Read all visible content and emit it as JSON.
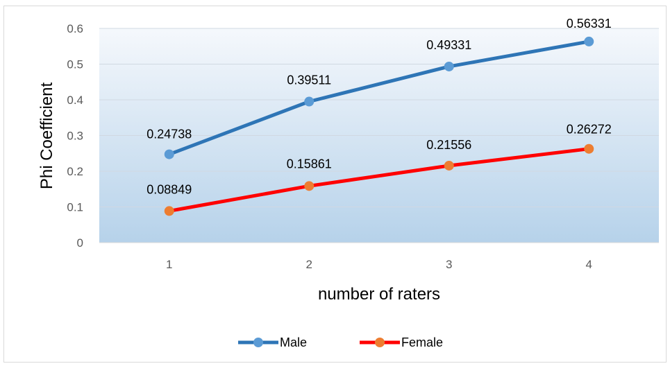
{
  "chart_data": {
    "type": "line",
    "title": "",
    "xlabel": "number of raters",
    "ylabel": "Phi Coefficient",
    "categories": [
      "1",
      "2",
      "3",
      "4"
    ],
    "ylim": [
      0,
      0.6
    ],
    "yticks": [
      "0",
      "0.1",
      "0.2",
      "0.3",
      "0.4",
      "0.5",
      "0.6"
    ],
    "grid": true,
    "legend_position": "bottom",
    "series": [
      {
        "name": "Male",
        "values": [
          0.24738,
          0.39511,
          0.49331,
          0.56331
        ],
        "labels": [
          "0.24738",
          "0.39511",
          "0.49331",
          "0.56331"
        ],
        "line_color": "#2e75b6",
        "marker_color": "#5b9bd5"
      },
      {
        "name": "Female",
        "values": [
          0.08849,
          0.15861,
          0.21556,
          0.26272
        ],
        "labels": [
          "0.08849",
          "0.15861",
          "0.21556",
          "0.26272"
        ],
        "line_color": "#ff0000",
        "marker_color": "#ed7d31"
      }
    ]
  }
}
